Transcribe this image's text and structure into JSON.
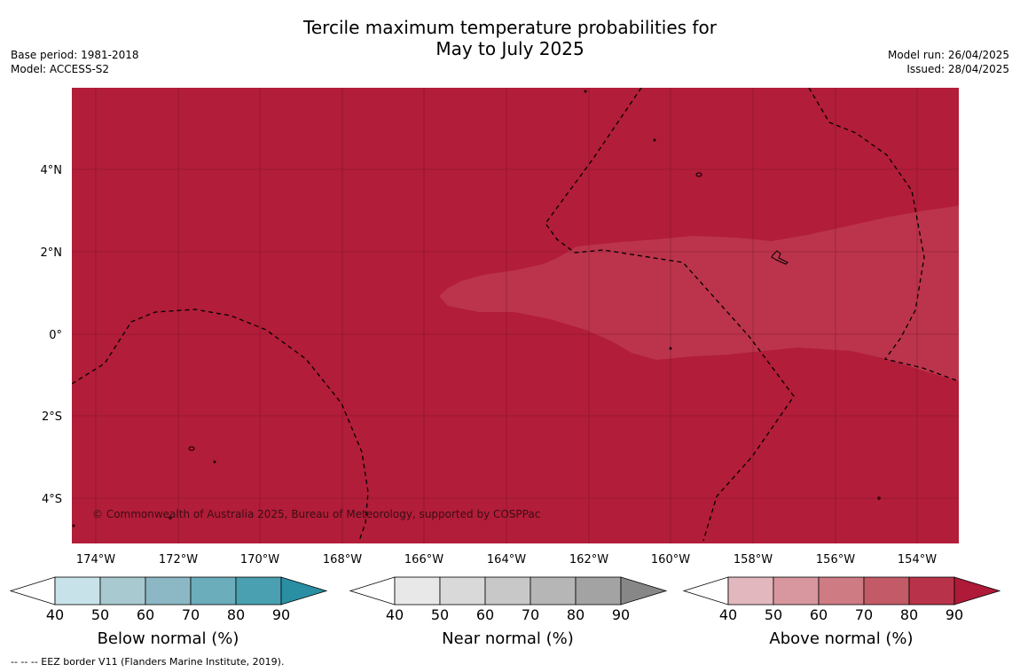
{
  "title_line1": "Tercile maximum temperature probabilities for",
  "title_line2": "May to July 2025",
  "base_period": "Base period: 1981-2018",
  "model": "Model: ACCESS-S2",
  "model_run": "Model run: 26/04/2025",
  "issued": "Issued: 28/04/2025",
  "copyright": "© Commonwealth of Australia 2025, Bureau of Meteorology, supported by COSPPac",
  "footnote": "-- -- -- EEZ border V11 (Flanders Marine Institute, 2019).",
  "lat_labels": [
    "4°N",
    "2°N",
    "0°",
    "2°S",
    "4°S"
  ],
  "lon_labels": [
    "174°W",
    "172°W",
    "170°W",
    "168°W",
    "166°W",
    "164°W",
    "162°W",
    "160°W",
    "158°W",
    "156°W",
    "154°W"
  ],
  "colorbars": [
    {
      "label": "Below normal (%)",
      "ticks": [
        "40",
        "50",
        "60",
        "70",
        "80",
        "90"
      ],
      "colors": [
        "#ffffff",
        "#c8e2e9",
        "#a8c9cf",
        "#8cb8c5",
        "#6cadbb",
        "#4aa0b1",
        "#2a8fa3"
      ]
    },
    {
      "label": "Near normal (%)",
      "ticks": [
        "40",
        "50",
        "60",
        "70",
        "80",
        "90"
      ],
      "colors": [
        "#ffffff",
        "#e8e8e8",
        "#d9d9d9",
        "#c8c8c8",
        "#b6b6b6",
        "#a3a3a3",
        "#878787"
      ]
    },
    {
      "label": "Above normal (%)",
      "ticks": [
        "40",
        "50",
        "60",
        "70",
        "80",
        "90"
      ],
      "colors": [
        "#ffffff",
        "#e2b7bd",
        "#d8979f",
        "#ce7b84",
        "#c35a67",
        "#b83349",
        "#ae1a38"
      ]
    }
  ],
  "colors": {
    "map_base": "#b21d39",
    "map_lighter": "#bb344b",
    "grid": "#5a1020"
  }
}
